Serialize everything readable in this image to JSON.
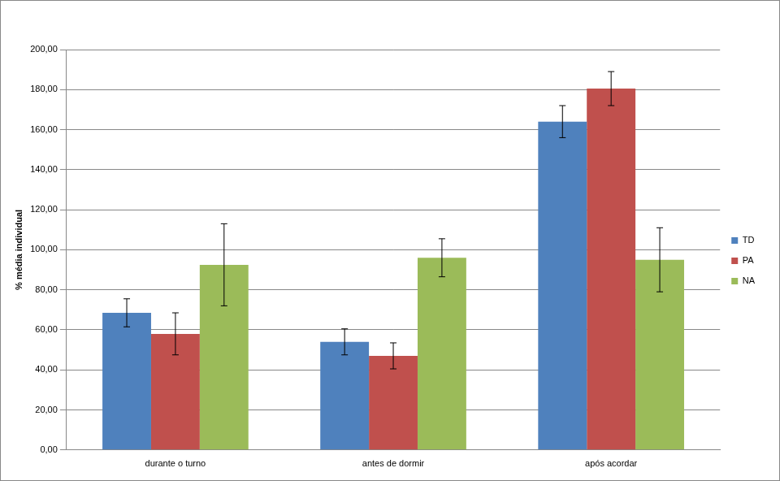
{
  "chart_data": {
    "type": "bar",
    "y_label": "% média individual",
    "categories": [
      "durante o turno",
      "antes de dormir",
      "após acordar"
    ],
    "series": [
      {
        "name": "TD",
        "color": "#4f81bd",
        "values": [
          68.5,
          54,
          164
        ],
        "errors": [
          7,
          6.5,
          8
        ]
      },
      {
        "name": "PA",
        "color": "#c0504d",
        "values": [
          58,
          47,
          180.5
        ],
        "errors": [
          10.5,
          6.5,
          8.5
        ]
      },
      {
        "name": "NA",
        "color": "#9bbb59",
        "values": [
          92.5,
          96,
          95
        ],
        "errors": [
          20.5,
          9.5,
          16
        ]
      }
    ],
    "ylim": [
      0,
      200
    ],
    "yticks": [
      {
        "value": 0,
        "label": "0,00"
      },
      {
        "value": 20,
        "label": "20,00"
      },
      {
        "value": 40,
        "label": "40,00"
      },
      {
        "value": 60,
        "label": "60,00"
      },
      {
        "value": 80,
        "label": "80,00"
      },
      {
        "value": 100,
        "label": "100,00"
      },
      {
        "value": 120,
        "label": "120,00"
      },
      {
        "value": 140,
        "label": "140,00"
      },
      {
        "value": 160,
        "label": "160,00"
      },
      {
        "value": 180,
        "label": "180,00"
      },
      {
        "value": 200,
        "label": "200,00"
      }
    ],
    "grid": true,
    "legend": "right"
  }
}
